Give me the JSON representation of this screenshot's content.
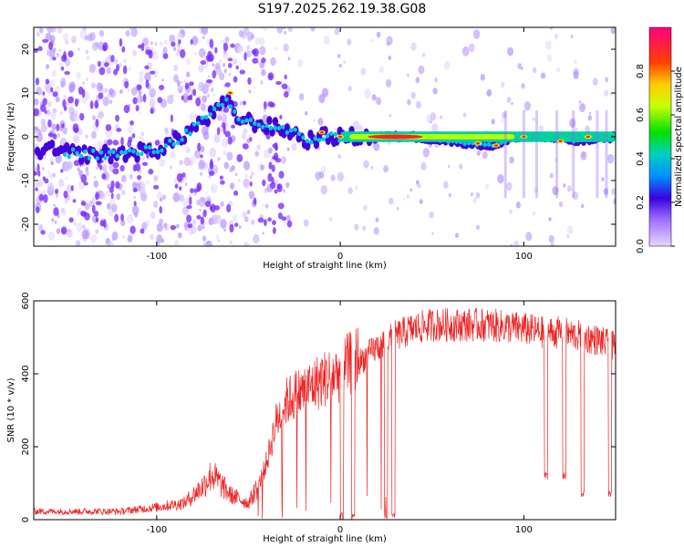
{
  "title": "S197.2025.262.19.38.G08",
  "chart_data": [
    {
      "type": "heatmap",
      "xlabel": "Height of straight line (km)",
      "ylabel": "Frequency (Hz)",
      "xlim": [
        -167,
        150
      ],
      "ylim": [
        -25,
        25
      ],
      "xticks": [
        -100,
        0,
        100
      ],
      "yticks": [
        -20,
        -10,
        0,
        10,
        20
      ],
      "colorbar": {
        "label": "Normalized spectral amplitude",
        "ticks": [
          "0.0",
          "0.2",
          "0.4",
          "0.6",
          "0.8"
        ],
        "range": [
          0,
          1
        ]
      },
      "ridge_line": {
        "x": [
          -160,
          -140,
          -120,
          -100,
          -90,
          -80,
          -70,
          -62,
          -55,
          -45,
          -35,
          -25,
          -20,
          -10,
          -5,
          0,
          20,
          40,
          60,
          80,
          85,
          95,
          110,
          130,
          150
        ],
        "y": [
          -3,
          -4,
          -4,
          -3,
          -1,
          2,
          5,
          8,
          4,
          3,
          2,
          1,
          -1,
          0,
          0,
          0,
          0,
          0,
          -1,
          -2,
          -2,
          0,
          0,
          -1,
          0
        ]
      }
    },
    {
      "type": "line",
      "xlabel": "Height of straight line (km)",
      "ylabel": "SNR (10 * v/v)",
      "xlim": [
        -167,
        150
      ],
      "ylim": [
        0,
        600
      ],
      "xticks": [
        -100,
        0,
        100
      ],
      "yticks": [
        0,
        200,
        400,
        600
      ],
      "color": "#ee2222",
      "envelope": {
        "x": [
          -167,
          -120,
          -100,
          -85,
          -75,
          -70,
          -60,
          -50,
          -45,
          -40,
          -35,
          -30,
          -25,
          -20,
          -10,
          0,
          10,
          20,
          30,
          40,
          50,
          60,
          80,
          100,
          110,
          120,
          130,
          140,
          150
        ],
        "y": [
          20,
          20,
          30,
          40,
          80,
          110,
          60,
          40,
          80,
          150,
          250,
          300,
          320,
          330,
          360,
          380,
          420,
          460,
          490,
          510,
          520,
          520,
          520,
          510,
          500,
          500,
          490,
          480,
          460
        ]
      },
      "dropouts": [
        {
          "x": 1,
          "y": 0
        },
        {
          "x": 7,
          "y": 0
        },
        {
          "x": 25,
          "y": 0
        },
        {
          "x": 29,
          "y": 0
        },
        {
          "x": 112,
          "y": 110
        },
        {
          "x": 122,
          "y": 110
        },
        {
          "x": 132,
          "y": 60
        },
        {
          "x": 147,
          "y": 60
        }
      ]
    }
  ]
}
